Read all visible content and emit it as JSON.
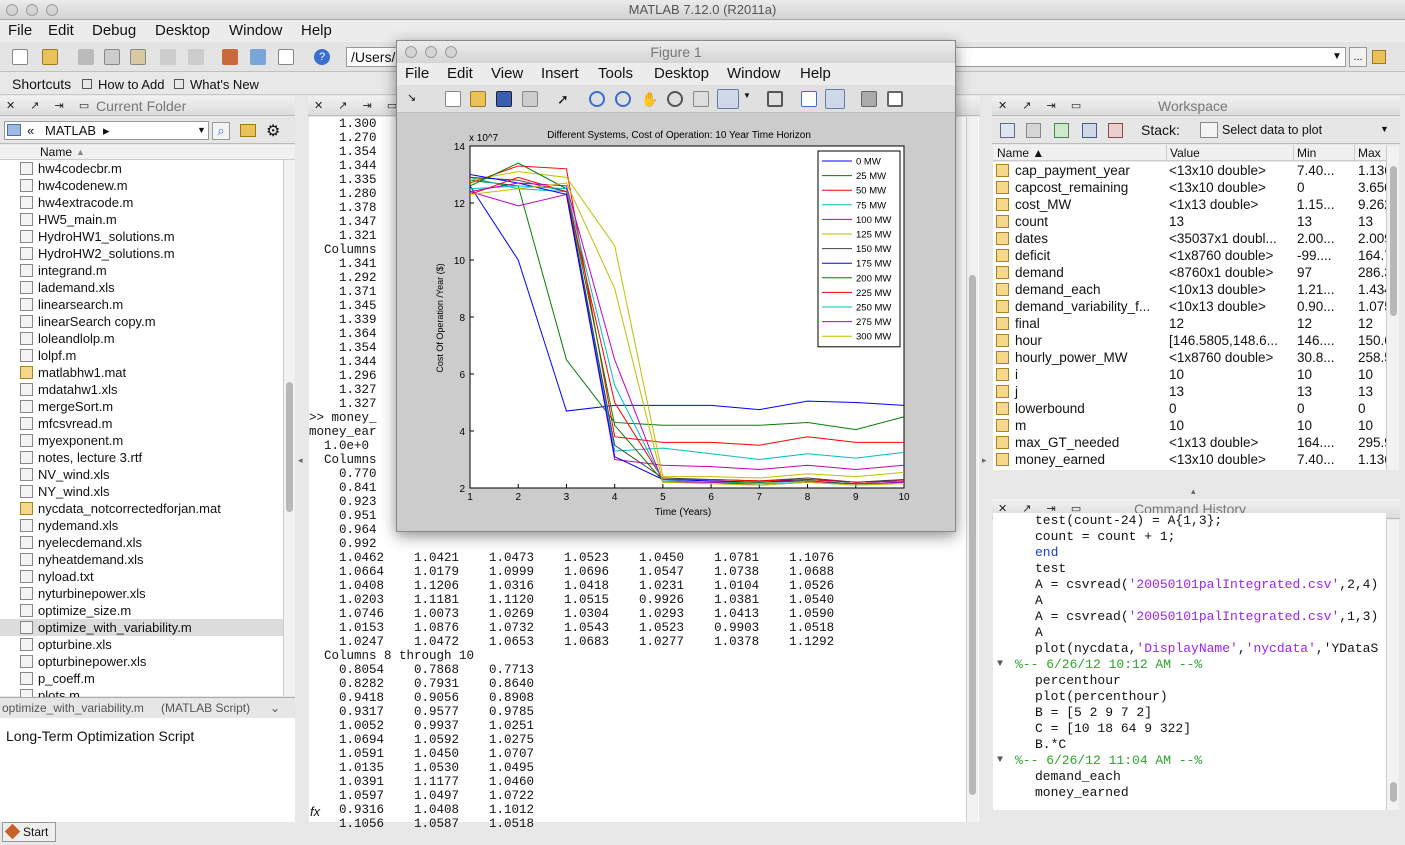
{
  "app": {
    "title": "MATLAB  7.12.0 (R2011a)",
    "menu": [
      "File",
      "Edit",
      "Debug",
      "Desktop",
      "Window",
      "Help"
    ],
    "path": "/Users/",
    "shortcuts": [
      "Shortcuts",
      "How to Add",
      "What's New"
    ]
  },
  "folder": {
    "title": "Current Folder",
    "location": "MATLAB",
    "column": "Name",
    "files": [
      "hw4codecbr.m",
      "hw4codenew.m",
      "hw4extracode.m",
      "HW5_main.m",
      "HydroHW1_solutions.m",
      "HydroHW2_solutions.m",
      "integrand.m",
      "lademand.xls",
      "linearsearch.m",
      "linearSearch copy.m",
      "loleandlolp.m",
      "lolpf.m",
      "matlabhw1.mat",
      "mdatahw1.xls",
      "mergeSort.m",
      "mfcsvread.m",
      "myexponent.m",
      "notes, lecture 3.rtf",
      "NV_wind.xls",
      "NY_wind.xls",
      "nycdata_notcorrectedforjan.mat",
      "nydemand.xls",
      "nyelecdemand.xls",
      "nyheatdemand.xls",
      "nyload.txt",
      "nyturbinepower.xls",
      "optimize_size.m",
      "optimize_with_variability.m",
      "opturbine.xls",
      "opturbinepower.xls",
      "p_coeff.m",
      "plots.m"
    ],
    "selected_index": 27,
    "detail_name": "optimize_with_variability.m",
    "detail_type": "(MATLAB Script)",
    "description": "Long-Term Optimization Script"
  },
  "command": {
    "lines": [
      "    1.300",
      "    1.270",
      "    1.354",
      "    1.344",
      "    1.335",
      "    1.280",
      "    1.378",
      "    1.347",
      "    1.321",
      "  Columns",
      "    1.341",
      "    1.292",
      "    1.371",
      "    1.345",
      "    1.339",
      "    1.364",
      "    1.354",
      "    1.344",
      "    1.296",
      "    1.327",
      "    1.327",
      ">> money_",
      "money_ear",
      "  1.0e+0",
      "  Columns",
      "    0.770",
      "    0.841",
      "    0.923",
      "    0.951",
      "    0.964",
      "    0.992",
      "    1.0462    1.0421    1.0473    1.0523    1.0450    1.0781    1.1076",
      "    1.0664    1.0179    1.0999    1.0696    1.0547    1.0738    1.0688",
      "    1.0408    1.1206    1.0316    1.0418    1.0231    1.0104    1.0526",
      "    1.0203    1.1181    1.1120    1.0515    0.9926    1.0381    1.0540",
      "    1.0746    1.0073    1.0269    1.0304    1.0293    1.0413    1.0590",
      "    1.0153    1.0876    1.0732    1.0543    1.0523    0.9903    1.0518",
      "    1.0247    1.0472    1.0653    1.0683    1.0277    1.0378    1.1292",
      "  Columns 8 through 10",
      "    0.8054    0.7868    0.7713",
      "    0.8282    0.7931    0.8640",
      "    0.9418    0.9056    0.8908",
      "    0.9317    0.9577    0.9785",
      "    1.0052    0.9937    1.0251",
      "    1.0694    1.0592    1.0275",
      "    1.0591    1.0450    1.0707",
      "    1.0135    1.0530    1.0495",
      "    1.0391    1.1177    1.0460",
      "    1.0597    1.0497    1.0722",
      "    0.9316    1.0408    1.1012",
      "    1.1056    1.0587    1.0518"
    ],
    "fx": "fx"
  },
  "workspace": {
    "title": "Workspace",
    "stack_label": "Stack:",
    "select_label": "Select data to plot",
    "headers": [
      "Name ▲",
      "Value",
      "Min",
      "Max"
    ],
    "rows": [
      [
        "cap_payment_year",
        "<13x10 double>",
        "7.40...",
        "1.136"
      ],
      [
        "capcost_remaining",
        "<13x10 double>",
        "0",
        "3.650"
      ],
      [
        "cost_MW",
        "<1x13 double>",
        "1.15...",
        "9.262"
      ],
      [
        "count",
        "13",
        "13",
        "13"
      ],
      [
        "dates",
        "<35037x1 doubl...",
        "2.00...",
        "2.009"
      ],
      [
        "deficit",
        "<1x8760 double>",
        "-99....",
        "164.7"
      ],
      [
        "demand",
        "<8760x1 double>",
        "97",
        "286.3"
      ],
      [
        "demand_each",
        "<10x13 double>",
        "1.21...",
        "1.434"
      ],
      [
        "demand_variability_f...",
        "<10x13 double>",
        "0.90...",
        "1.075"
      ],
      [
        "final",
        "12",
        "12",
        "12"
      ],
      [
        "hour",
        "[146.5805,148.6...",
        "146....",
        "150.6"
      ],
      [
        "hourly_power_MW",
        "<1x8760 double>",
        "30.8...",
        "258.5"
      ],
      [
        "i",
        "10",
        "10",
        "10"
      ],
      [
        "j",
        "13",
        "13",
        "13"
      ],
      [
        "lowerbound",
        "0",
        "0",
        "0"
      ],
      [
        "m",
        "10",
        "10",
        "10"
      ],
      [
        "max_GT_needed",
        "<1x13 double>",
        "164....",
        "295.9"
      ],
      [
        "money_earned",
        "<13x10 double>",
        "7.40...",
        "1.136"
      ]
    ]
  },
  "history": {
    "title": "Command History",
    "lines": [
      {
        "t": "test(count-24) = A{1,3};",
        "k": "code"
      },
      {
        "t": "count = count + 1;",
        "k": "code"
      },
      {
        "t": "end",
        "k": "kw"
      },
      {
        "t": "test",
        "k": "code"
      },
      {
        "t": "A = csvread('20050101palIntegrated.csv',2,4)",
        "k": "code"
      },
      {
        "t": "A",
        "k": "code"
      },
      {
        "t": "A = csvread('20050101palIntegrated.csv',1,3)",
        "k": "code"
      },
      {
        "t": "A",
        "k": "code"
      },
      {
        "t": "plot(nycdata,'DisplayName','nycdata','YDataS",
        "k": "code"
      },
      {
        "t": "%-- 6/26/12 10:12 AM --%",
        "k": "hdr"
      },
      {
        "t": "percenthour",
        "k": "code"
      },
      {
        "t": "plot(percenthour)",
        "k": "code"
      },
      {
        "t": "B = [5 2 9 7 2]",
        "k": "code"
      },
      {
        "t": "C = [10 18 64 9 322]",
        "k": "code"
      },
      {
        "t": "B.*C",
        "k": "code"
      },
      {
        "t": "%-- 6/26/12 11:04 AM --%",
        "k": "hdr"
      },
      {
        "t": "demand_each",
        "k": "code"
      },
      {
        "t": "money_earned",
        "k": "code"
      }
    ]
  },
  "figure": {
    "title": "Figure 1",
    "menu": [
      "File",
      "Edit",
      "View",
      "Insert",
      "Tools",
      "Desktop",
      "Window",
      "Help"
    ]
  },
  "chart_data": {
    "type": "line",
    "title": "Different Systems, Cost of Operation: 10 Year Time Horizon",
    "xlabel": "Time (Years)",
    "ylabel": "Cost Of Operation /Year ($)",
    "y_exponent": "x 10^7",
    "x": [
      1,
      2,
      3,
      4,
      5,
      6,
      7,
      8,
      9,
      10
    ],
    "xlim": [
      1,
      10
    ],
    "ylim": [
      2,
      14
    ],
    "yticks": [
      2,
      4,
      6,
      8,
      10,
      12,
      14
    ],
    "legend_position": "top-right",
    "series": [
      {
        "name": "0 MW",
        "color": "#0000ff",
        "values": [
          12.6,
          10.0,
          4.7,
          4.9,
          4.9,
          4.9,
          4.75,
          5.05,
          5.0,
          4.9
        ]
      },
      {
        "name": "25 MW",
        "color": "#007f00",
        "values": [
          12.8,
          12.6,
          6.5,
          4.3,
          4.2,
          4.2,
          4.2,
          4.3,
          4.05,
          4.5
        ]
      },
      {
        "name": "50 MW",
        "color": "#ff0000",
        "values": [
          12.7,
          13.3,
          13.2,
          3.8,
          3.6,
          3.6,
          3.5,
          3.8,
          3.6,
          3.6
        ]
      },
      {
        "name": "75 MW",
        "color": "#00bfbf",
        "values": [
          12.9,
          12.5,
          12.4,
          3.3,
          3.4,
          3.2,
          3.0,
          3.2,
          3.05,
          3.25
        ]
      },
      {
        "name": "100 MW",
        "color": "#bf00bf",
        "values": [
          12.4,
          11.9,
          12.3,
          3.0,
          2.8,
          2.75,
          2.65,
          2.8,
          2.65,
          2.8
        ]
      },
      {
        "name": "125 MW",
        "color": "#bfbf00",
        "values": [
          12.8,
          13.1,
          12.9,
          10.5,
          2.4,
          2.4,
          2.35,
          2.5,
          2.4,
          2.55
        ]
      },
      {
        "name": "150 MW",
        "color": "#404040",
        "values": [
          12.9,
          12.8,
          12.4,
          3.5,
          2.35,
          2.3,
          2.25,
          2.35,
          2.2,
          2.3
        ]
      },
      {
        "name": "175 MW",
        "color": "#0000ff",
        "values": [
          13.0,
          12.7,
          12.3,
          3.1,
          2.3,
          2.25,
          2.2,
          2.3,
          2.2,
          2.25
        ]
      },
      {
        "name": "200 MW",
        "color": "#007f00",
        "values": [
          12.6,
          13.4,
          12.5,
          4.2,
          2.25,
          2.2,
          2.2,
          2.25,
          2.15,
          2.2
        ]
      },
      {
        "name": "225 MW",
        "color": "#ff0000",
        "values": [
          12.3,
          12.9,
          12.4,
          5.0,
          2.3,
          2.3,
          2.25,
          2.3,
          2.2,
          2.25
        ]
      },
      {
        "name": "250 MW",
        "color": "#00bfbf",
        "values": [
          12.5,
          12.6,
          12.5,
          5.6,
          2.25,
          2.2,
          2.15,
          2.2,
          2.1,
          2.2
        ]
      },
      {
        "name": "275 MW",
        "color": "#bf00bf",
        "values": [
          12.4,
          12.7,
          12.6,
          6.5,
          2.2,
          2.2,
          2.1,
          2.2,
          2.15,
          2.2
        ]
      },
      {
        "name": "300 MW",
        "color": "#bfbf00",
        "values": [
          12.3,
          12.5,
          12.7,
          9.0,
          2.2,
          2.15,
          2.1,
          2.2,
          2.1,
          2.15
        ]
      }
    ]
  }
}
